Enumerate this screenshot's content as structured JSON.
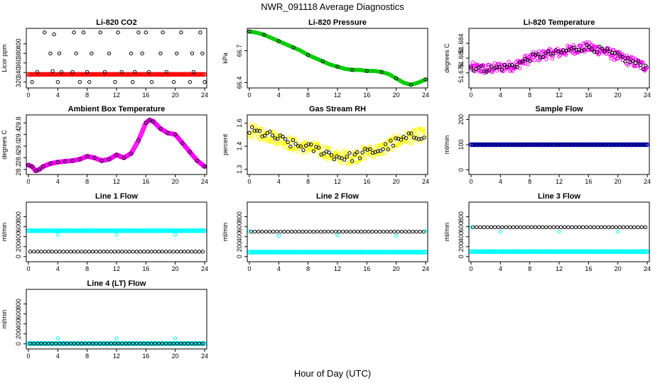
{
  "title": "NWR_091118  Average Diagnostics",
  "xlabel": "Hour of Day (UTC)",
  "colors": {
    "black": "#000000",
    "red": "#ff0000",
    "green": "#00cc00",
    "magenta": "#ff00ff",
    "yellow": "#ffff00",
    "cyan": "#00ffff",
    "blue": "#0000ff"
  },
  "chart_data": [
    {
      "type": "scatter",
      "title": "Li-820 CO2",
      "ylabel": "Licor ppm",
      "xlim": [
        0,
        24
      ],
      "xticks": [
        0,
        4,
        8,
        12,
        16,
        20,
        24
      ],
      "ylim": [
        312,
        428
      ],
      "yticks": [
        320,
        340,
        360,
        380,
        400
      ],
      "series": [
        {
          "color": "red",
          "kind": "band",
          "x": [
            0,
            24
          ],
          "y": [
            336,
            336
          ]
        },
        {
          "color": "black",
          "kind": "points",
          "x": [
            0.5,
            1.2,
            2.2,
            3.0,
            3.3,
            3.5,
            4.0,
            4.2,
            4.5,
            6.0,
            6.2,
            6.5,
            7.0,
            7.5,
            8.0,
            8.3,
            8.6,
            9.8,
            10.4,
            11.0,
            11.8,
            12.2,
            12.7,
            14.0,
            14.2,
            14.5,
            15.0,
            15.5,
            16.0,
            16.4,
            16.8,
            18.0,
            18.3,
            18.8,
            19.8,
            20.2,
            20.8,
            22.0,
            22.3,
            22.5,
            23.4,
            23.7,
            24.0
          ],
          "y": [
            320,
            341,
            424,
            380,
            343,
            420,
            320,
            380,
            341,
            341,
            424,
            380,
            320,
            424,
            341,
            320,
            380,
            424,
            341,
            380,
            320,
            424,
            341,
            380,
            320,
            341,
            424,
            380,
            424,
            341,
            320,
            380,
            424,
            341,
            320,
            380,
            424,
            320,
            380,
            341,
            424,
            380,
            320
          ]
        }
      ]
    },
    {
      "type": "scatter",
      "title": "Li-820 Pressure",
      "ylabel": "kPa",
      "xlim": [
        0,
        24
      ],
      "xticks": [
        0,
        4,
        8,
        12,
        16,
        20,
        24
      ],
      "ylim": [
        66.37,
        66.89
      ],
      "yticks": [
        66.4,
        66.7
      ],
      "series": [
        {
          "color": "green",
          "kind": "curve",
          "x": [
            0,
            1,
            2,
            3,
            4,
            5,
            6,
            7,
            8,
            9,
            10,
            11,
            12,
            13,
            14,
            15,
            16,
            17,
            18,
            19,
            20,
            21,
            22,
            23,
            24
          ],
          "y": [
            66.88,
            66.87,
            66.85,
            66.82,
            66.79,
            66.76,
            66.73,
            66.7,
            66.66,
            66.63,
            66.6,
            66.57,
            66.55,
            66.53,
            66.52,
            66.52,
            66.51,
            66.51,
            66.5,
            66.48,
            66.44,
            66.4,
            66.38,
            66.4,
            66.43
          ]
        },
        {
          "color": "black",
          "kind": "points",
          "x": [
            0,
            2,
            4,
            6,
            8,
            10,
            12,
            14,
            16,
            18,
            20,
            22,
            24
          ],
          "y": [
            66.88,
            66.85,
            66.79,
            66.73,
            66.66,
            66.6,
            66.55,
            66.52,
            66.51,
            66.5,
            66.44,
            66.38,
            66.43
          ]
        }
      ]
    },
    {
      "type": "scatter",
      "title": "Li-820 Temperature",
      "ylabel": "degrees C",
      "xlim": [
        0,
        24
      ],
      "xticks": [
        0,
        4,
        8,
        12,
        16,
        20,
        24
      ],
      "ylim": [
        51.6725,
        51.6875
      ],
      "yticks": [
        51.676,
        51.68,
        51.684
      ],
      "series": [
        {
          "color": "magenta",
          "kind": "noisy-curve",
          "spread": 0.0028,
          "x": [
            0,
            2,
            4,
            6,
            8,
            10,
            12,
            14,
            16,
            18,
            20,
            22,
            24
          ],
          "y": [
            51.6775,
            51.677,
            51.6775,
            51.678,
            51.68,
            51.681,
            51.6815,
            51.6825,
            51.683,
            51.682,
            51.6805,
            51.679,
            51.6775
          ]
        },
        {
          "color": "black",
          "kind": "noisy-curve",
          "spread": 0.0018,
          "x": [
            0,
            2,
            4,
            6,
            8,
            10,
            12,
            14,
            16,
            18,
            20,
            22,
            24
          ],
          "y": [
            51.6775,
            51.677,
            51.6775,
            51.678,
            51.68,
            51.681,
            51.6815,
            51.6825,
            51.683,
            51.682,
            51.6805,
            51.679,
            51.6775
          ]
        }
      ]
    },
    {
      "type": "scatter",
      "title": "Ambient Box Temperature",
      "ylabel": "degrees C",
      "xlim": [
        0,
        24
      ],
      "xticks": [
        0,
        4,
        8,
        12,
        16,
        20,
        24
      ],
      "ylim": [
        28.1,
        30.0
      ],
      "yticks": [
        28.2,
        28.6,
        29.0,
        29.4,
        29.8
      ],
      "series": [
        {
          "color": "magenta",
          "kind": "curve-thick",
          "x": [
            0,
            0.5,
            1,
            1.5,
            2,
            3,
            4,
            5,
            6,
            7,
            8,
            9,
            10,
            11,
            12,
            13,
            14,
            15,
            16,
            16.5,
            17,
            18,
            19,
            20,
            21,
            22,
            23,
            24
          ],
          "y": [
            28.35,
            28.3,
            28.15,
            28.2,
            28.3,
            28.4,
            28.45,
            28.48,
            28.5,
            28.55,
            28.65,
            28.6,
            28.5,
            28.55,
            28.7,
            28.6,
            28.75,
            29.2,
            29.8,
            29.9,
            29.85,
            29.6,
            29.45,
            29.4,
            29.1,
            28.8,
            28.5,
            28.3
          ]
        },
        {
          "color": "black",
          "kind": "points",
          "x": [
            0,
            0.5,
            1,
            1.5,
            2,
            3,
            4,
            5,
            6,
            7,
            8,
            9,
            10,
            11,
            12,
            13,
            14,
            15,
            16,
            16.5,
            17,
            18,
            19,
            20,
            21,
            22,
            23,
            24
          ],
          "y": [
            28.35,
            28.3,
            28.15,
            28.2,
            28.3,
            28.4,
            28.45,
            28.48,
            28.5,
            28.55,
            28.65,
            28.6,
            28.5,
            28.55,
            28.7,
            28.6,
            28.75,
            29.2,
            29.8,
            29.9,
            29.85,
            29.6,
            29.45,
            29.4,
            29.1,
            28.8,
            28.5,
            28.3
          ]
        }
      ]
    },
    {
      "type": "scatter",
      "title": "Gas Stream RH",
      "ylabel": "percent",
      "xlim": [
        0,
        24
      ],
      "xticks": [
        0,
        4,
        8,
        12,
        16,
        20,
        24
      ],
      "ylim": [
        1.28,
        1.64
      ],
      "yticks": [
        1.3,
        1.45,
        1.6
      ],
      "series": [
        {
          "color": "yellow",
          "kind": "noisy-curve",
          "spread": 0.09,
          "x": [
            0,
            2,
            4,
            6,
            8,
            10,
            12,
            14,
            16,
            18,
            20,
            22,
            24
          ],
          "y": [
            1.55,
            1.53,
            1.5,
            1.46,
            1.44,
            1.42,
            1.38,
            1.38,
            1.41,
            1.43,
            1.48,
            1.51,
            1.53
          ]
        },
        {
          "color": "black",
          "kind": "noisy-curve",
          "spread": 0.06,
          "x": [
            0,
            2,
            4,
            6,
            8,
            10,
            12,
            14,
            16,
            18,
            20,
            22,
            24
          ],
          "y": [
            1.55,
            1.53,
            1.5,
            1.46,
            1.44,
            1.42,
            1.38,
            1.38,
            1.41,
            1.43,
            1.48,
            1.51,
            1.53
          ]
        }
      ]
    },
    {
      "type": "scatter",
      "title": "Sample Flow",
      "ylabel": "ml/min",
      "xlim": [
        0,
        24
      ],
      "xticks": [
        0,
        4,
        8,
        12,
        16,
        20,
        24
      ],
      "ylim": [
        -10,
        210
      ],
      "yticks": [
        0,
        100,
        200
      ],
      "series": [
        {
          "color": "blue",
          "kind": "band",
          "x": [
            0,
            24
          ],
          "y": [
            100,
            100
          ]
        },
        {
          "color": "black",
          "kind": "flat-points",
          "x": [
            0,
            24
          ],
          "y": [
            100,
            100
          ]
        }
      ]
    },
    {
      "type": "scatter",
      "title": "Line 1 Flow",
      "ylabel": "ml/min",
      "xlim": [
        0,
        24
      ],
      "xticks": [
        0,
        4,
        8,
        12,
        16,
        20,
        24
      ],
      "ylim": [
        -60,
        1050
      ],
      "yticks": [
        0,
        200,
        400,
        600,
        800
      ],
      "series": [
        {
          "color": "cyan",
          "kind": "band",
          "x": [
            0,
            24
          ],
          "y": [
            520,
            520
          ]
        },
        {
          "color": "cyan",
          "kind": "points",
          "x": [
            4,
            12,
            20
          ],
          "y": [
            440,
            440,
            440
          ]
        },
        {
          "color": "black",
          "kind": "flat-points",
          "x": [
            0,
            24
          ],
          "y": [
            100,
            100
          ]
        }
      ]
    },
    {
      "type": "scatter",
      "title": "Line 2 Flow",
      "ylabel": "ml/min",
      "xlim": [
        0,
        24
      ],
      "xticks": [
        0,
        4,
        8,
        12,
        16,
        20,
        24
      ],
      "ylim": [
        -60,
        1050
      ],
      "yticks": [
        0,
        200,
        400,
        600,
        800
      ],
      "series": [
        {
          "color": "cyan",
          "kind": "band",
          "x": [
            0,
            24
          ],
          "y": [
            90,
            90
          ]
        },
        {
          "color": "black",
          "kind": "flat-points",
          "x": [
            0,
            24
          ],
          "y": [
            500,
            500
          ]
        },
        {
          "color": "cyan",
          "kind": "points",
          "x": [
            0,
            4,
            12,
            20,
            24
          ],
          "y": [
            510,
            420,
            430,
            420,
            510
          ]
        }
      ]
    },
    {
      "type": "scatter",
      "title": "Line 3 Flow",
      "ylabel": "ml/min",
      "xlim": [
        0,
        24
      ],
      "xticks": [
        0,
        4,
        8,
        12,
        16,
        20,
        24
      ],
      "ylim": [
        -60,
        1050
      ],
      "yticks": [
        0,
        200,
        400,
        600,
        800
      ],
      "series": [
        {
          "color": "cyan",
          "kind": "band",
          "x": [
            0,
            24
          ],
          "y": [
            100,
            100
          ]
        },
        {
          "color": "black",
          "kind": "flat-points",
          "x": [
            0,
            24
          ],
          "y": [
            590,
            590
          ]
        },
        {
          "color": "cyan",
          "kind": "points",
          "x": [
            0,
            4,
            12,
            20
          ],
          "y": [
            590,
            500,
            500,
            500
          ]
        }
      ]
    },
    {
      "type": "scatter",
      "title": "Line 4 (LT) Flow",
      "ylabel": "ml/min",
      "xlim": [
        0,
        24
      ],
      "xticks": [
        0,
        4,
        8,
        12,
        16,
        20,
        24
      ],
      "ylim": [
        -60,
        1050
      ],
      "yticks": [
        0,
        200,
        400,
        600,
        800
      ],
      "series": [
        {
          "color": "cyan",
          "kind": "band",
          "x": [
            0,
            24
          ],
          "y": [
            5,
            5
          ]
        },
        {
          "color": "black",
          "kind": "flat-points",
          "x": [
            0,
            24
          ],
          "y": [
            5,
            5
          ]
        },
        {
          "color": "cyan",
          "kind": "points",
          "x": [
            4,
            12,
            20
          ],
          "y": [
            110,
            110,
            110
          ]
        }
      ]
    }
  ]
}
